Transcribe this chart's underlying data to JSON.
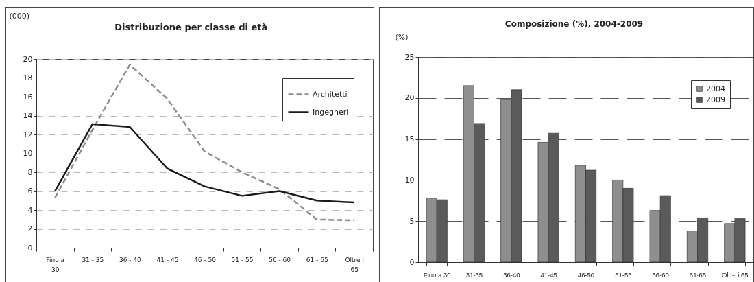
{
  "chart_data": [
    {
      "type": "line",
      "title": "Distribuzione per classe di età",
      "ylabel": "(000)",
      "categories": [
        "Fino a 30",
        "31 - 35",
        "36 - 40",
        "41 - 45",
        "46 - 50",
        "51 - 55",
        "56 - 60",
        "61 - 65",
        "Oltre i 65"
      ],
      "series": [
        {
          "name": "Architetti",
          "color": "#8c8c8c",
          "line_style": "dashed",
          "values": [
            5.3,
            12.5,
            19.4,
            15.8,
            10.2,
            8.0,
            6.2,
            3.0,
            2.9
          ]
        },
        {
          "name": "Ingegneri",
          "color": "#1a1a1a",
          "line_style": "solid",
          "values": [
            6.0,
            13.1,
            12.8,
            8.4,
            6.5,
            5.5,
            6.0,
            5.0,
            4.8
          ]
        }
      ],
      "ylim": [
        0,
        20
      ],
      "yticks": [
        0,
        2,
        4,
        6,
        8,
        10,
        12,
        14,
        16,
        18,
        20
      ],
      "grid": "y",
      "legend": "top right"
    },
    {
      "type": "bar",
      "title": "Composizione (%), 2004-2009",
      "ylabel": "(%)",
      "categories": [
        "Fino a 30",
        "31-35",
        "36-40",
        "41-45",
        "46-50",
        "51-55",
        "56-60",
        "61-65",
        "Oltre i 65"
      ],
      "series": [
        {
          "name": "2004",
          "color": "#8e8e8e",
          "values": [
            7.8,
            21.5,
            19.8,
            14.6,
            11.8,
            10.0,
            6.3,
            3.8,
            4.7
          ]
        },
        {
          "name": "2009",
          "color": "#5a5a5a",
          "values": [
            7.6,
            16.9,
            21.0,
            15.7,
            11.2,
            9.0,
            8.1,
            5.4,
            5.3
          ]
        }
      ],
      "ylim": [
        0,
        25
      ],
      "yticks": [
        0,
        5,
        10,
        15,
        20,
        25
      ],
      "grid": "y",
      "legend": "top right"
    }
  ]
}
